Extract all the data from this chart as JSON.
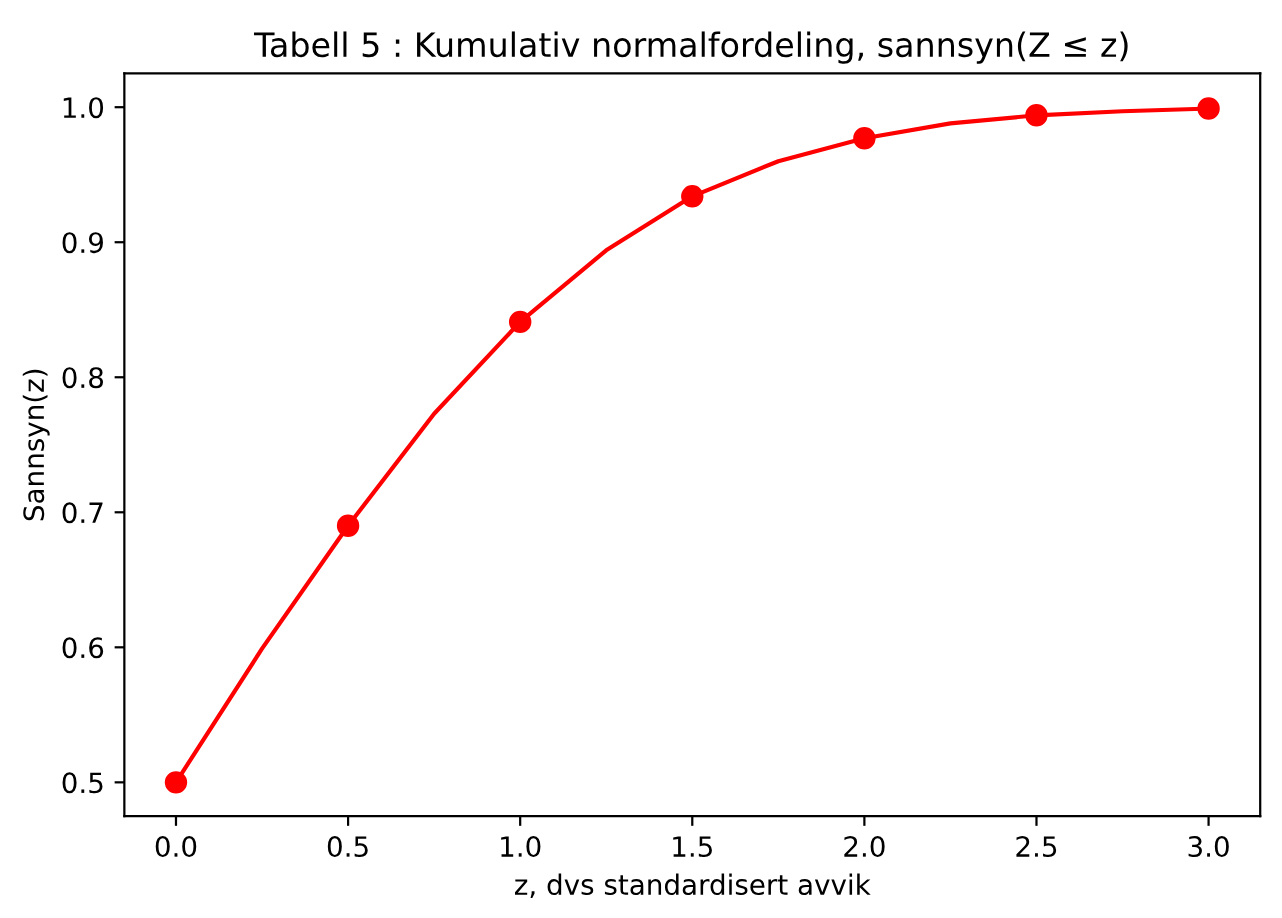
{
  "chart_data": {
    "type": "line",
    "title": "Tabell 5 : Kumulativ normalfordeling, sannsyn(Z ≤ z)",
    "xlabel": "z, dvs standardisert avvik",
    "ylabel": "Sannsyn(z)",
    "series": [
      {
        "color": "#ff0000",
        "marker": "none",
        "x": [
          0.0,
          0.25,
          0.5,
          0.75,
          1.0,
          1.25,
          1.5,
          1.75,
          2.0,
          2.25,
          2.5,
          2.75,
          3.0
        ],
        "values": [
          0.5,
          0.599,
          0.69,
          0.773,
          0.841,
          0.894,
          0.934,
          0.96,
          0.977,
          0.988,
          0.994,
          0.997,
          0.999
        ]
      },
      {
        "type": "scatter",
        "color": "#ff0000",
        "marker": "circle",
        "x": [
          0.0,
          0.5,
          1.0,
          1.5,
          2.0,
          2.5,
          3.0
        ],
        "values": [
          0.5,
          0.69,
          0.841,
          0.934,
          0.977,
          0.994,
          0.999
        ]
      }
    ],
    "xlim": [
      -0.15,
      3.15
    ],
    "ylim": [
      0.475,
      1.025
    ],
    "xticks": [
      {
        "value": 0,
        "label": "0.0"
      },
      0.5,
      {
        "value": 1,
        "label": "1.0"
      },
      1.5,
      {
        "value": 2,
        "label": "2.0"
      },
      2.5,
      {
        "value": 3,
        "label": "3.0"
      }
    ],
    "yticks": [
      0.5,
      0.6,
      0.7,
      0.8,
      0.9,
      {
        "value": 1,
        "label": "1.0"
      }
    ],
    "grid": false,
    "legend": false
  }
}
